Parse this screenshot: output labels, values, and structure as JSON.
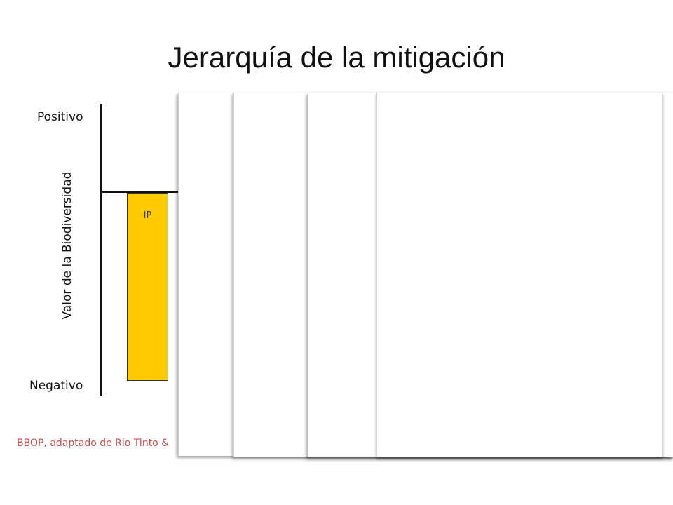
{
  "title": "Jerarquía de la mitigación",
  "diagram": {
    "y_axis_label": "Valor de la Biodiversidad",
    "top_label": "Positivo",
    "bottom_label": "Negativo",
    "bar_label": "IP",
    "bar_color": "#ffcc00"
  },
  "citation": "BBOP, adaptado de Rio Tinto &",
  "colors": {
    "citation": "#c0504d",
    "axis": "#111111"
  }
}
